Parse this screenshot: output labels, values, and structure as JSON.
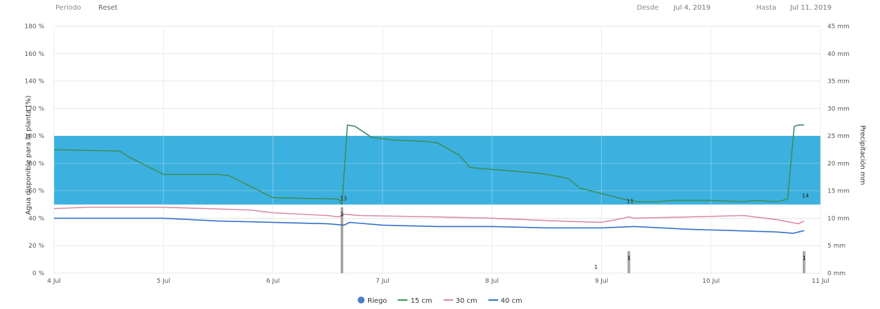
{
  "toolbar": {
    "zoom_label": "Periodo",
    "reset_label": "Reset",
    "from_label": "Desde",
    "from_value": "Jul 4, 2019",
    "to_label": "Hasta",
    "to_value": "Jul 11, 2019"
  },
  "chart_data": {
    "type": "line",
    "xlabel": "",
    "ylabel": "Agua disponible para la planta (%)",
    "y2label": "Precipitación mm",
    "ylim": [
      0,
      180
    ],
    "y2lim": [
      0,
      45
    ],
    "yticks": [
      "0 %",
      "20 %",
      "40 %",
      "60 %",
      "80 %",
      "100 %",
      "120 %",
      "140 %",
      "160 %",
      "180 %"
    ],
    "y2ticks": [
      "0 mm",
      "5 mm",
      "10 mm",
      "15 mm",
      "20 mm",
      "25 mm",
      "30 mm",
      "35 mm",
      "40 mm",
      "45 mm"
    ],
    "xticks": [
      "4 Jul",
      "5 Jul",
      "6 Jul",
      "7 Jul",
      "8 Jul",
      "9 Jul",
      "10 Jul",
      "11 Jul"
    ],
    "xlim": [
      0,
      7
    ],
    "band": {
      "from": 50,
      "to": 100,
      "color": "#1aa3d9"
    },
    "grid": true,
    "legend_position": "bottom",
    "series": [
      {
        "name": "15 cm",
        "color": "#3a8f5a",
        "x": [
          0,
          0.6,
          0.7,
          0.9,
          1.0,
          1.5,
          1.6,
          1.8,
          2.0,
          2.6,
          2.63,
          2.68,
          2.75,
          2.9,
          3.1,
          3.4,
          3.5,
          3.7,
          3.8,
          4.4,
          4.5,
          4.7,
          4.8,
          5.25,
          5.28,
          5.33,
          5.5,
          5.65,
          5.85,
          6.0,
          6.3,
          6.4,
          6.6,
          6.7,
          6.76,
          6.8,
          6.85
        ],
        "y": [
          90,
          89,
          84,
          76,
          72,
          72,
          71,
          63,
          55,
          54,
          50,
          108,
          107,
          99,
          97,
          96,
          95,
          86,
          77,
          73,
          72,
          69,
          62,
          53,
          53,
          52,
          52,
          53,
          53,
          53,
          52,
          53,
          52,
          54,
          107,
          108,
          108
        ]
      },
      {
        "name": "30 cm",
        "color": "#d98b9c",
        "x": [
          0,
          0.3,
          1.0,
          1.8,
          2.0,
          2.5,
          2.6,
          2.65,
          2.8,
          3.5,
          4.0,
          4.6,
          5.0,
          5.2,
          5.25,
          5.3,
          5.8,
          6.3,
          6.6,
          6.8,
          6.85
        ],
        "y": [
          47,
          48,
          48,
          46,
          44,
          42,
          41,
          43,
          42,
          41,
          40,
          38,
          37,
          40,
          41,
          40,
          41,
          42,
          39,
          36,
          38
        ]
      },
      {
        "name": "40 cm",
        "color": "#2f6fc9",
        "x": [
          0,
          0.5,
          1.0,
          1.5,
          2.0,
          2.5,
          2.65,
          2.7,
          3.0,
          3.5,
          4.0,
          4.5,
          5.0,
          5.3,
          5.8,
          6.2,
          6.6,
          6.75,
          6.85
        ],
        "y": [
          40,
          40,
          40,
          38,
          37,
          36,
          35,
          37,
          35,
          34,
          34,
          33,
          33,
          34,
          32,
          31,
          30,
          29,
          31
        ]
      }
    ],
    "legend_items": [
      {
        "name": "Riego",
        "color": "#4a7fc2",
        "kind": "dot"
      },
      {
        "name": "15 cm",
        "color": "#3a8f5a",
        "kind": "line"
      },
      {
        "name": "30 cm",
        "color": "#d98b9c",
        "kind": "line"
      },
      {
        "name": "40 cm",
        "color": "#2f6fc9",
        "kind": "line"
      }
    ],
    "events": [
      {
        "x": 2.63,
        "label": "13",
        "label_y": 54,
        "bar_label": "3",
        "bar_height": 3
      },
      {
        "x": 5.25,
        "label": "11",
        "label_y": 52,
        "bar_label": "1",
        "bar_height": 1
      },
      {
        "x": 6.85,
        "label": "14",
        "label_y": 56,
        "bar_label": "1",
        "bar_height": 1
      }
    ]
  }
}
